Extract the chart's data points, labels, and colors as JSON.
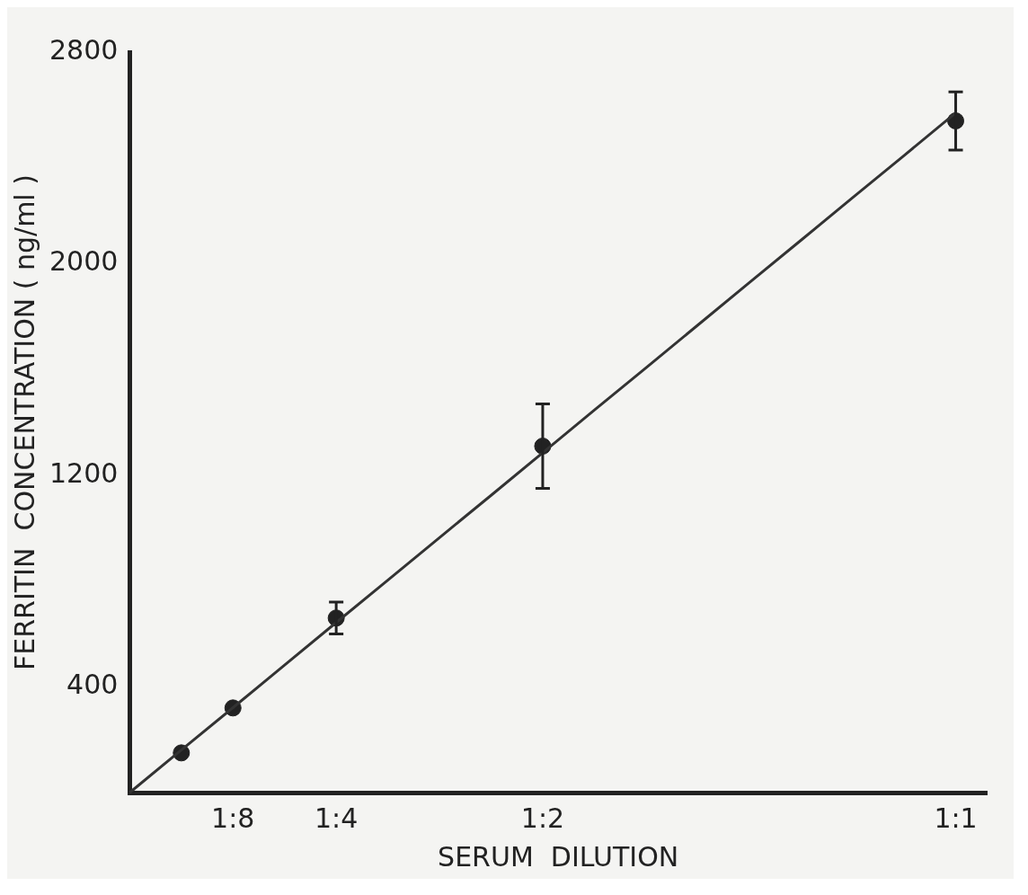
{
  "chart_data": {
    "type": "scatter",
    "xlabel": "SERUM  DILUTION",
    "ylabel": "FERRITIN  CONCENTRATION ( ng/ml )",
    "categories": [
      null,
      null,
      "1:8",
      null,
      "1:4",
      null,
      null,
      null,
      "1:2",
      null,
      null,
      null,
      null,
      null,
      null,
      null,
      "1:1"
    ],
    "ylim": [
      0,
      2800
    ],
    "yticks": [
      400,
      1200,
      2000,
      2800
    ],
    "grid": false,
    "marker": "circle",
    "series": [
      {
        "type": "scatter",
        "color": "#222222",
        "values": [
          null,
          150,
          320,
          null,
          660,
          null,
          null,
          null,
          1310,
          null,
          null,
          null,
          null,
          null,
          null,
          null,
          2540
        ],
        "errors": [
          null,
          null,
          null,
          null,
          60,
          null,
          null,
          null,
          160,
          null,
          null,
          null,
          null,
          null,
          null,
          null,
          110
        ]
      },
      {
        "type": "line",
        "color": "#333333",
        "values": [
          0,
          161,
          321,
          482,
          643,
          803,
          964,
          1124,
          1285,
          1446,
          1606,
          1767,
          1928,
          2088,
          2249,
          2409,
          2570
        ],
        "marker": "none"
      }
    ]
  }
}
